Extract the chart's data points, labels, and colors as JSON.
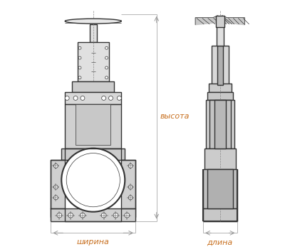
{
  "bg_color": "#ffffff",
  "line_color": "#333333",
  "label_color": "#c87020",
  "label_font_size": 8,
  "labels": {
    "vysota": "высота",
    "shirina": "ширина",
    "dlina": "длина"
  },
  "figsize": [
    4.0,
    3.46
  ],
  "dpi": 100
}
